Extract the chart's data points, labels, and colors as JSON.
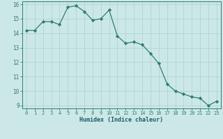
{
  "x": [
    0,
    1,
    2,
    3,
    4,
    5,
    6,
    7,
    8,
    9,
    10,
    11,
    12,
    13,
    14,
    15,
    16,
    17,
    18,
    19,
    20,
    21,
    22,
    23
  ],
  "y": [
    14.2,
    14.2,
    14.8,
    14.8,
    14.6,
    15.8,
    15.9,
    15.5,
    14.9,
    15.0,
    15.6,
    13.8,
    13.3,
    13.4,
    13.2,
    12.6,
    11.9,
    10.5,
    10.0,
    9.8,
    9.6,
    9.5,
    9.0,
    9.3
  ],
  "xlabel": "Humidex (Indice chaleur)",
  "xlim": [
    -0.5,
    23.5
  ],
  "ylim": [
    8.8,
    16.2
  ],
  "yticks": [
    9,
    10,
    11,
    12,
    13,
    14,
    15,
    16
  ],
  "xticks": [
    0,
    1,
    2,
    3,
    4,
    5,
    6,
    7,
    8,
    9,
    10,
    11,
    12,
    13,
    14,
    15,
    16,
    17,
    18,
    19,
    20,
    21,
    22,
    23
  ],
  "line_color": "#2e7d6e",
  "marker_color": "#2e7d6e",
  "bg_color": "#cce8e6",
  "grid_color": "#aed4d2",
  "axes_color": "#2e7d6e",
  "label_color": "#1a5c6e"
}
